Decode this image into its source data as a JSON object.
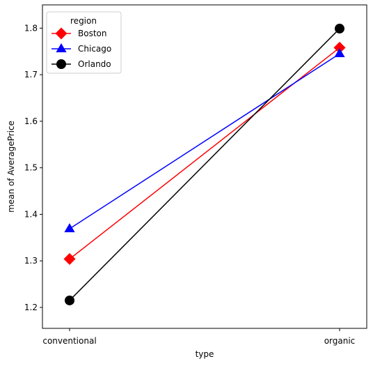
{
  "chart_data": {
    "type": "line",
    "title": "",
    "xlabel": "type",
    "ylabel": "mean of AveragePrice",
    "categories": [
      "conventional",
      "organic"
    ],
    "ylim": [
      1.155,
      1.85
    ],
    "yticks": [
      "1.2",
      "1.3",
      "1.4",
      "1.5",
      "1.6",
      "1.7",
      "1.8"
    ],
    "grid": false,
    "legend": {
      "title": "region",
      "placement": "upper-left"
    },
    "series": [
      {
        "name": "Boston",
        "values": [
          1.304,
          1.758
        ],
        "color": "#ff0000",
        "marker": "diamond"
      },
      {
        "name": "Chicago",
        "values": [
          1.369,
          1.745
        ],
        "color": "#0000ff",
        "marker": "triangle"
      },
      {
        "name": "Orlando",
        "values": [
          1.215,
          1.799
        ],
        "color": "#000000",
        "marker": "circle"
      }
    ]
  }
}
